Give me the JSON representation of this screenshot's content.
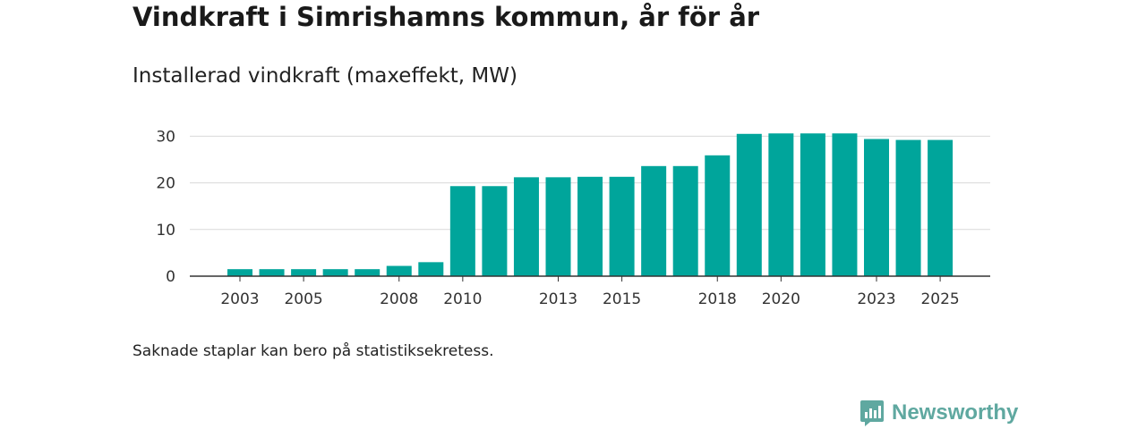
{
  "colors": {
    "bar": "#00a59b",
    "grid": "#d9d9d9",
    "axis": "#333333",
    "brand": "#5fa8a0"
  },
  "footer": {
    "note": "Saknade staplar kan bero på statistiksekretess."
  },
  "brand": {
    "name": "Newsworthy",
    "icon": "newsworthy-logo-icon"
  },
  "chart_data": {
    "type": "bar",
    "title": "Vindkraft i Simrishamns kommun, år för år",
    "subtitle": "Installerad vindkraft (maxeffekt, MW)",
    "xlabel": "",
    "ylabel": "",
    "ylim": [
      0,
      33
    ],
    "yticks": [
      0,
      10,
      20,
      30
    ],
    "grid": true,
    "categories": [
      2003,
      2004,
      2005,
      2006,
      2007,
      2008,
      2009,
      2010,
      2011,
      2012,
      2013,
      2014,
      2015,
      2016,
      2017,
      2018,
      2019,
      2020,
      2021,
      2022,
      2023,
      2024,
      2025
    ],
    "values": [
      1.5,
      1.5,
      1.5,
      1.5,
      1.5,
      2.2,
      3.0,
      19.3,
      19.3,
      21.2,
      21.2,
      21.3,
      21.3,
      23.6,
      23.6,
      25.9,
      30.5,
      30.6,
      30.6,
      30.6,
      29.4,
      29.2,
      29.2
    ],
    "xtick_labels": [
      "2003",
      "2005",
      "2008",
      "2010",
      "2013",
      "2015",
      "2018",
      "2020",
      "2023",
      "2025"
    ]
  }
}
